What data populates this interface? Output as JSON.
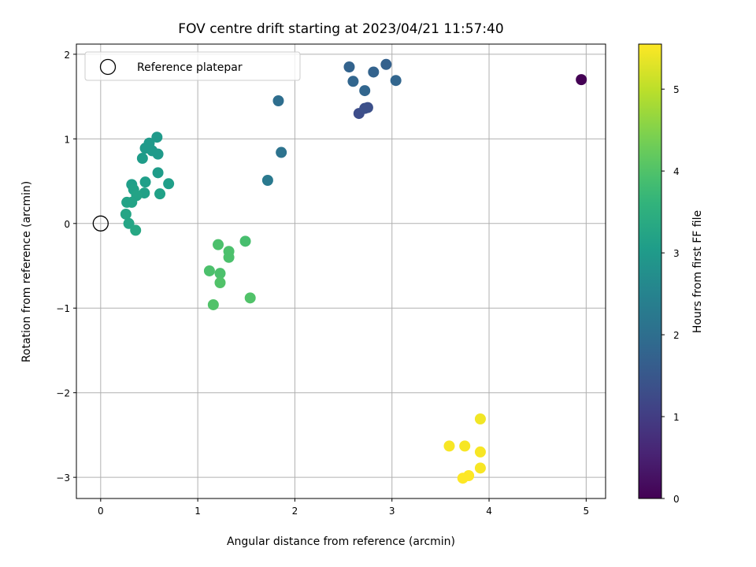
{
  "chart_data": {
    "type": "scatter",
    "title": "FOV centre drift starting at 2023/04/21 11:57:40",
    "xlabel": "Angular distance from reference (arcmin)",
    "ylabel": "Rotation from reference (arcmin)",
    "xlim": [
      -0.25,
      5.2
    ],
    "ylim": [
      -3.25,
      2.12
    ],
    "x_ticks": [
      0,
      1,
      2,
      3,
      4,
      5
    ],
    "y_ticks": [
      2,
      1,
      0,
      -1,
      -2,
      -3
    ],
    "y_tick_labels": [
      "2",
      "1",
      "0",
      "−1",
      "−2",
      "−3"
    ],
    "grid": true,
    "legend": {
      "location": "upper-left",
      "entries": [
        "Reference platepar"
      ]
    },
    "reference_point": {
      "x": 0,
      "y": 0,
      "label": "Reference platepar"
    },
    "colorbar": {
      "label": "Hours from first FF file",
      "colormap": "viridis",
      "range": [
        0,
        5.55
      ],
      "ticks": [
        0,
        1,
        2,
        3,
        4,
        5
      ]
    },
    "points": [
      {
        "x": 4.95,
        "y": 1.7,
        "c": 0.0
      },
      {
        "x": 2.66,
        "y": 1.3,
        "c": 1.3
      },
      {
        "x": 2.72,
        "y": 1.36,
        "c": 1.35
      },
      {
        "x": 2.75,
        "y": 1.37,
        "c": 1.35
      },
      {
        "x": 2.94,
        "y": 1.88,
        "c": 1.7
      },
      {
        "x": 2.56,
        "y": 1.85,
        "c": 1.75
      },
      {
        "x": 2.81,
        "y": 1.79,
        "c": 1.75
      },
      {
        "x": 2.6,
        "y": 1.68,
        "c": 1.8
      },
      {
        "x": 3.04,
        "y": 1.69,
        "c": 1.8
      },
      {
        "x": 2.72,
        "y": 1.57,
        "c": 1.8
      },
      {
        "x": 1.83,
        "y": 1.45,
        "c": 2.0
      },
      {
        "x": 1.86,
        "y": 0.84,
        "c": 2.1
      },
      {
        "x": 1.72,
        "y": 0.51,
        "c": 2.25
      },
      {
        "x": 0.58,
        "y": 1.02,
        "c": 3.0
      },
      {
        "x": 0.5,
        "y": 0.95,
        "c": 3.0
      },
      {
        "x": 0.46,
        "y": 0.89,
        "c": 3.0
      },
      {
        "x": 0.53,
        "y": 0.86,
        "c": 3.0
      },
      {
        "x": 0.59,
        "y": 0.82,
        "c": 3.0
      },
      {
        "x": 0.43,
        "y": 0.77,
        "c": 3.05
      },
      {
        "x": 0.59,
        "y": 0.6,
        "c": 3.05
      },
      {
        "x": 0.46,
        "y": 0.49,
        "c": 3.1
      },
      {
        "x": 0.7,
        "y": 0.47,
        "c": 3.1
      },
      {
        "x": 0.32,
        "y": 0.46,
        "c": 3.1
      },
      {
        "x": 0.34,
        "y": 0.4,
        "c": 3.15
      },
      {
        "x": 0.45,
        "y": 0.36,
        "c": 3.15
      },
      {
        "x": 0.61,
        "y": 0.35,
        "c": 3.15
      },
      {
        "x": 0.37,
        "y": 0.33,
        "c": 3.2
      },
      {
        "x": 0.27,
        "y": 0.25,
        "c": 3.2
      },
      {
        "x": 0.32,
        "y": 0.25,
        "c": 3.2
      },
      {
        "x": 0.26,
        "y": 0.11,
        "c": 3.25
      },
      {
        "x": 0.29,
        "y": 0.0,
        "c": 3.25
      },
      {
        "x": 0.36,
        "y": -0.08,
        "c": 3.3
      },
      {
        "x": 1.49,
        "y": -0.21,
        "c": 3.9
      },
      {
        "x": 1.21,
        "y": -0.25,
        "c": 3.95
      },
      {
        "x": 1.32,
        "y": -0.33,
        "c": 3.95
      },
      {
        "x": 1.32,
        "y": -0.4,
        "c": 3.95
      },
      {
        "x": 1.12,
        "y": -0.56,
        "c": 3.95
      },
      {
        "x": 1.23,
        "y": -0.59,
        "c": 3.95
      },
      {
        "x": 1.23,
        "y": -0.7,
        "c": 4.0
      },
      {
        "x": 1.54,
        "y": -0.88,
        "c": 4.0
      },
      {
        "x": 1.16,
        "y": -0.96,
        "c": 4.0
      },
      {
        "x": 3.91,
        "y": -2.31,
        "c": 5.45
      },
      {
        "x": 3.59,
        "y": -2.63,
        "c": 5.5
      },
      {
        "x": 3.75,
        "y": -2.63,
        "c": 5.5
      },
      {
        "x": 3.91,
        "y": -2.7,
        "c": 5.5
      },
      {
        "x": 3.91,
        "y": -2.89,
        "c": 5.5
      },
      {
        "x": 3.79,
        "y": -2.98,
        "c": 5.55
      },
      {
        "x": 3.73,
        "y": -3.01,
        "c": 5.55
      }
    ]
  },
  "colors": {
    "grid": "#b0b0b0",
    "frame": "#000000",
    "reference_marker_stroke": "#000000",
    "legend_border": "#cccccc"
  }
}
